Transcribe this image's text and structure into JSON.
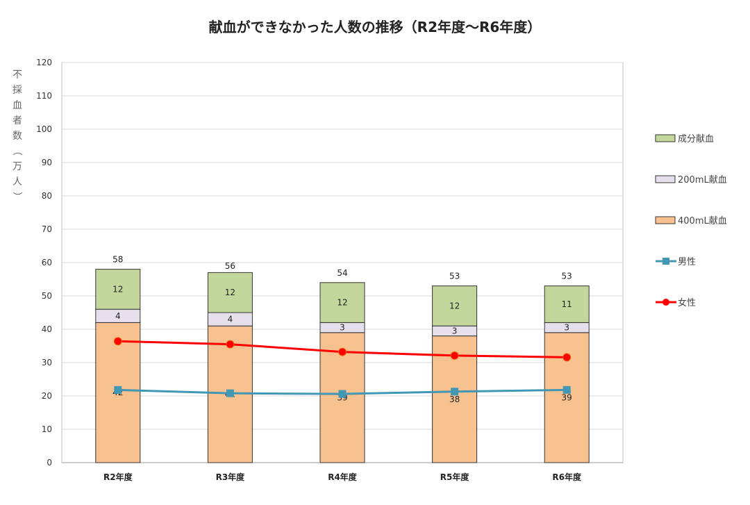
{
  "chart_data": {
    "type": "bar",
    "stacked": true,
    "title": "献血ができなかった人数の推移（R2年度～R6年度）",
    "ylabel": "不採血者数（万人）",
    "ylim": [
      0,
      120
    ],
    "yticks": [
      0,
      10,
      20,
      30,
      40,
      50,
      60,
      70,
      80,
      90,
      100,
      110,
      120
    ],
    "grid": true,
    "legend_position": "right",
    "categories": [
      "R2年度",
      "R3年度",
      "R4年度",
      "R5年度",
      "R6年度"
    ],
    "totals": [
      58,
      56,
      54,
      53,
      53
    ],
    "bar_series": [
      {
        "name": "400mL献血",
        "values": [
          42,
          41,
          39,
          38,
          39
        ],
        "color": "#f8c190"
      },
      {
        "name": "200mL献血",
        "values": [
          4,
          4,
          3,
          3,
          3
        ],
        "color": "#e6e0ec"
      },
      {
        "name": "成分献血",
        "values": [
          12,
          12,
          12,
          12,
          11
        ],
        "color": "#c3d69b"
      }
    ],
    "line_series": [
      {
        "name": "男性",
        "values": [
          21.8,
          20.8,
          20.6,
          21.3,
          21.8
        ],
        "color": "#4197b4",
        "marker": "square"
      },
      {
        "name": "女性",
        "values": [
          36.4,
          35.5,
          33.2,
          32.1,
          31.6
        ],
        "color": "#ff0000",
        "marker": "circle"
      }
    ],
    "legend_order": [
      "成分献血",
      "200mL献血",
      "400mL献血",
      "男性",
      "女性"
    ]
  }
}
